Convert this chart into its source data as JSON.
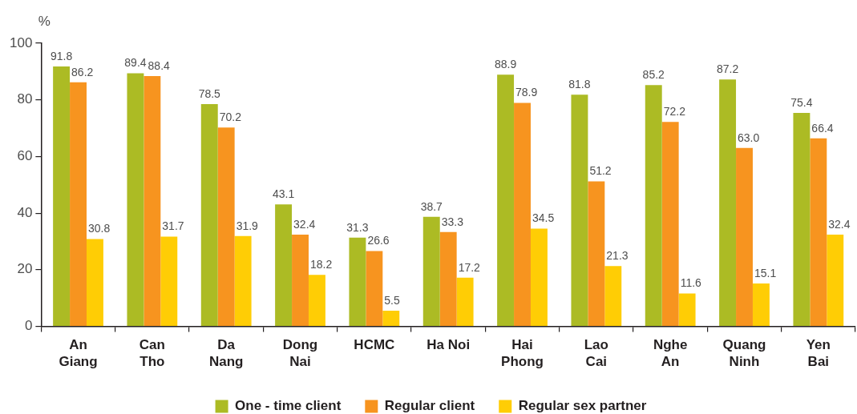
{
  "chart_data": {
    "type": "bar",
    "ylabel": "%",
    "categories": [
      "An Giang",
      "Can Tho",
      "Da Nang",
      "Dong Nai",
      "HCMC",
      "Ha Noi",
      "Hai Phong",
      "Lao Cai",
      "Nghe An",
      "Quang Ninh",
      "Yen Bai"
    ],
    "series": [
      {
        "name": "One - time client",
        "color": "#acbb24",
        "values": [
          91.8,
          89.4,
          78.5,
          43.1,
          31.3,
          38.7,
          88.9,
          81.8,
          85.2,
          87.2,
          75.4
        ],
        "value_labels": [
          "91.8",
          "89.4",
          "78.5",
          "43.1",
          "31.3",
          "38.7",
          "88.9",
          "81.8",
          "85.2",
          "87.2",
          "75.4"
        ]
      },
      {
        "name": "Regular client",
        "color": "#f7941f",
        "values": [
          86.2,
          88.4,
          70.2,
          32.4,
          26.6,
          33.3,
          78.9,
          51.2,
          72.2,
          63.0,
          66.4
        ],
        "value_labels": [
          "86.2",
          "88.4",
          "70.2",
          "32.4",
          "26.6",
          "33.3",
          "78.9",
          "51.2",
          "72.2",
          "63.0",
          "66.4"
        ]
      },
      {
        "name": "Regular sex partner",
        "color": "#ffcd05",
        "values": [
          30.8,
          31.7,
          31.9,
          18.2,
          5.5,
          17.2,
          34.5,
          21.3,
          11.6,
          15.1,
          32.4
        ],
        "value_labels": [
          "30.8",
          "31.7",
          "31.9",
          "18.2",
          "5.5",
          "17.2",
          "34.5",
          "21.3",
          "11.6",
          "15.1",
          "32.4"
        ]
      }
    ],
    "ylim": [
      0,
      100
    ],
    "yticks": [
      0,
      20,
      40,
      60,
      80,
      100
    ],
    "grid": false,
    "legend": "bottom"
  }
}
